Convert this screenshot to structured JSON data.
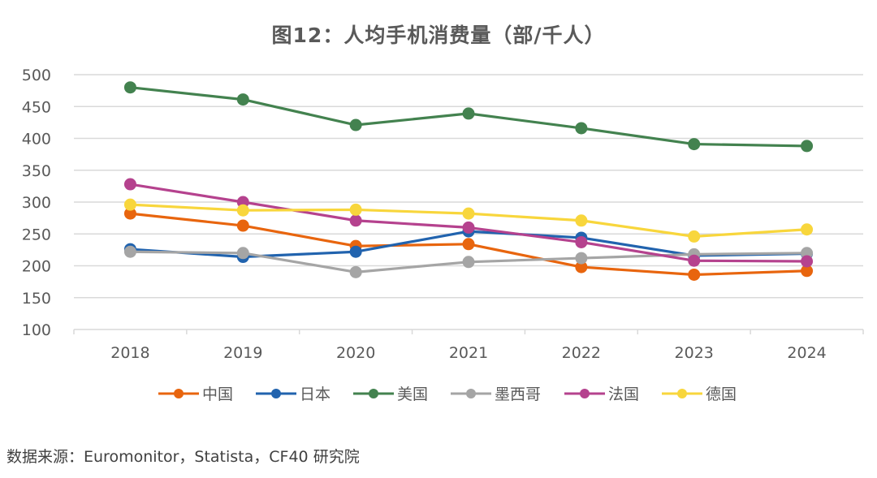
{
  "chart_data": {
    "type": "line",
    "title": "图12：人均手机消费量（部/千人）",
    "xlabel": "",
    "ylabel": "",
    "categories": [
      "2018",
      "2019",
      "2020",
      "2021",
      "2022",
      "2023",
      "2024"
    ],
    "ylim": [
      100,
      500
    ],
    "yticks": [
      100,
      150,
      200,
      250,
      300,
      350,
      400,
      450,
      500
    ],
    "grid": true,
    "legend_position": "bottom",
    "series": [
      {
        "name": "中国",
        "color": "#E8650E",
        "values": [
          282,
          263,
          231,
          234,
          198,
          186,
          192
        ]
      },
      {
        "name": "日本",
        "color": "#2163AE",
        "values": [
          226,
          214,
          222,
          254,
          244,
          216,
          219
        ]
      },
      {
        "name": "美国",
        "color": "#43824F",
        "values": [
          480,
          461,
          421,
          439,
          416,
          391,
          388
        ]
      },
      {
        "name": "墨西哥",
        "color": "#A5A5A5",
        "values": [
          222,
          220,
          190,
          206,
          212,
          218,
          220
        ]
      },
      {
        "name": "法国",
        "color": "#B5428E",
        "values": [
          328,
          300,
          271,
          260,
          237,
          208,
          207
        ]
      },
      {
        "name": "德国",
        "color": "#F8D63C",
        "values": [
          296,
          287,
          288,
          282,
          271,
          246,
          257
        ]
      }
    ]
  },
  "source_note": "数据来源：Euromonitor，Statista，CF40 研究院"
}
